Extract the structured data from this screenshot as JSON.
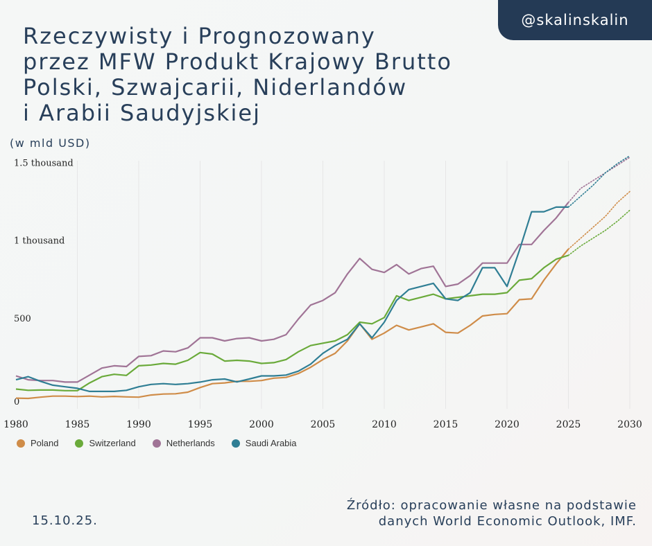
{
  "badge": "@skalinskalin",
  "title": [
    "Rzeczywisty i Prognozowany",
    "przez MFW Produkt Krajowy Brutto",
    "Polski, Szwajcarii, Niderlandów",
    "i Arabii Saudyjskiej"
  ],
  "unit_label": "(w mld USD)",
  "source": [
    "Źródło: opracowanie własne  na podstawie",
    "danych World Economic Outlook, IMF."
  ],
  "date": "15.10.25.",
  "chart_data": {
    "type": "line",
    "y_ticks": [
      {
        "value": 0,
        "label": "0"
      },
      {
        "value": 500,
        "label": "500"
      },
      {
        "value": 1000,
        "label": "1 thousand"
      },
      {
        "value": 1500,
        "label": "1.5 thousand"
      }
    ],
    "x_ticks": [
      1980,
      1985,
      1990,
      1995,
      2000,
      2005,
      2010,
      2015,
      2020,
      2025,
      2030
    ],
    "xlim": [
      1980,
      2030
    ],
    "ylim": [
      0,
      1600
    ],
    "actual_until": 2025,
    "grid": "vertical",
    "legend_position": "bottom-left",
    "x": [
      1980,
      1981,
      1982,
      1983,
      1984,
      1985,
      1986,
      1987,
      1988,
      1989,
      1990,
      1991,
      1992,
      1993,
      1994,
      1995,
      1996,
      1997,
      1998,
      1999,
      2000,
      2001,
      2002,
      2003,
      2004,
      2005,
      2006,
      2007,
      2008,
      2009,
      2010,
      2011,
      2012,
      2013,
      2014,
      2015,
      2016,
      2017,
      2018,
      2019,
      2020,
      2021,
      2022,
      2023,
      2024,
      2025,
      2026,
      2027,
      2028,
      2029,
      2030
    ],
    "series": [
      {
        "name": "Poland",
        "color": "#cf8c48",
        "values": [
          42,
          40,
          48,
          55,
          55,
          52,
          55,
          50,
          53,
          50,
          48,
          62,
          68,
          70,
          80,
          110,
          135,
          140,
          150,
          150,
          155,
          170,
          175,
          200,
          240,
          290,
          330,
          410,
          520,
          420,
          460,
          510,
          480,
          500,
          520,
          465,
          460,
          510,
          570,
          580,
          585,
          675,
          680,
          800,
          905,
          1000,
          1070,
          1140,
          1210,
          1300,
          1370
        ]
      },
      {
        "name": "Switzerland",
        "color": "#6aaa3a",
        "values": [
          100,
          92,
          94,
          94,
          90,
          90,
          140,
          180,
          195,
          188,
          250,
          255,
          265,
          260,
          285,
          335,
          325,
          280,
          285,
          280,
          265,
          270,
          290,
          340,
          380,
          395,
          410,
          450,
          530,
          520,
          560,
          700,
          670,
          690,
          710,
          680,
          690,
          700,
          710,
          710,
          720,
          800,
          810,
          880,
          935,
          960,
          1020,
          1070,
          1120,
          1180,
          1250
        ]
      },
      {
        "name": "Netherlands",
        "color": "#a07496",
        "values": [
          185,
          160,
          155,
          155,
          145,
          145,
          190,
          235,
          250,
          245,
          310,
          315,
          345,
          340,
          365,
          430,
          430,
          410,
          425,
          430,
          410,
          420,
          450,
          550,
          640,
          670,
          720,
          840,
          940,
          870,
          850,
          900,
          840,
          875,
          890,
          760,
          775,
          830,
          910,
          910,
          910,
          1030,
          1030,
          1120,
          1200,
          1300,
          1390,
          1440,
          1490,
          1540,
          1590
        ]
      },
      {
        "name": "Saudi Arabia",
        "color": "#2f7e94",
        "values": [
          160,
          180,
          150,
          125,
          115,
          105,
          85,
          85,
          85,
          92,
          115,
          130,
          135,
          130,
          135,
          145,
          160,
          165,
          146,
          165,
          185,
          185,
          190,
          215,
          260,
          330,
          380,
          420,
          520,
          430,
          530,
          670,
          740,
          760,
          780,
          680,
          670,
          720,
          880,
          880,
          760,
          990,
          1240,
          1240,
          1270,
          1270,
          1340,
          1410,
          1490,
          1550,
          1600
        ]
      }
    ]
  }
}
